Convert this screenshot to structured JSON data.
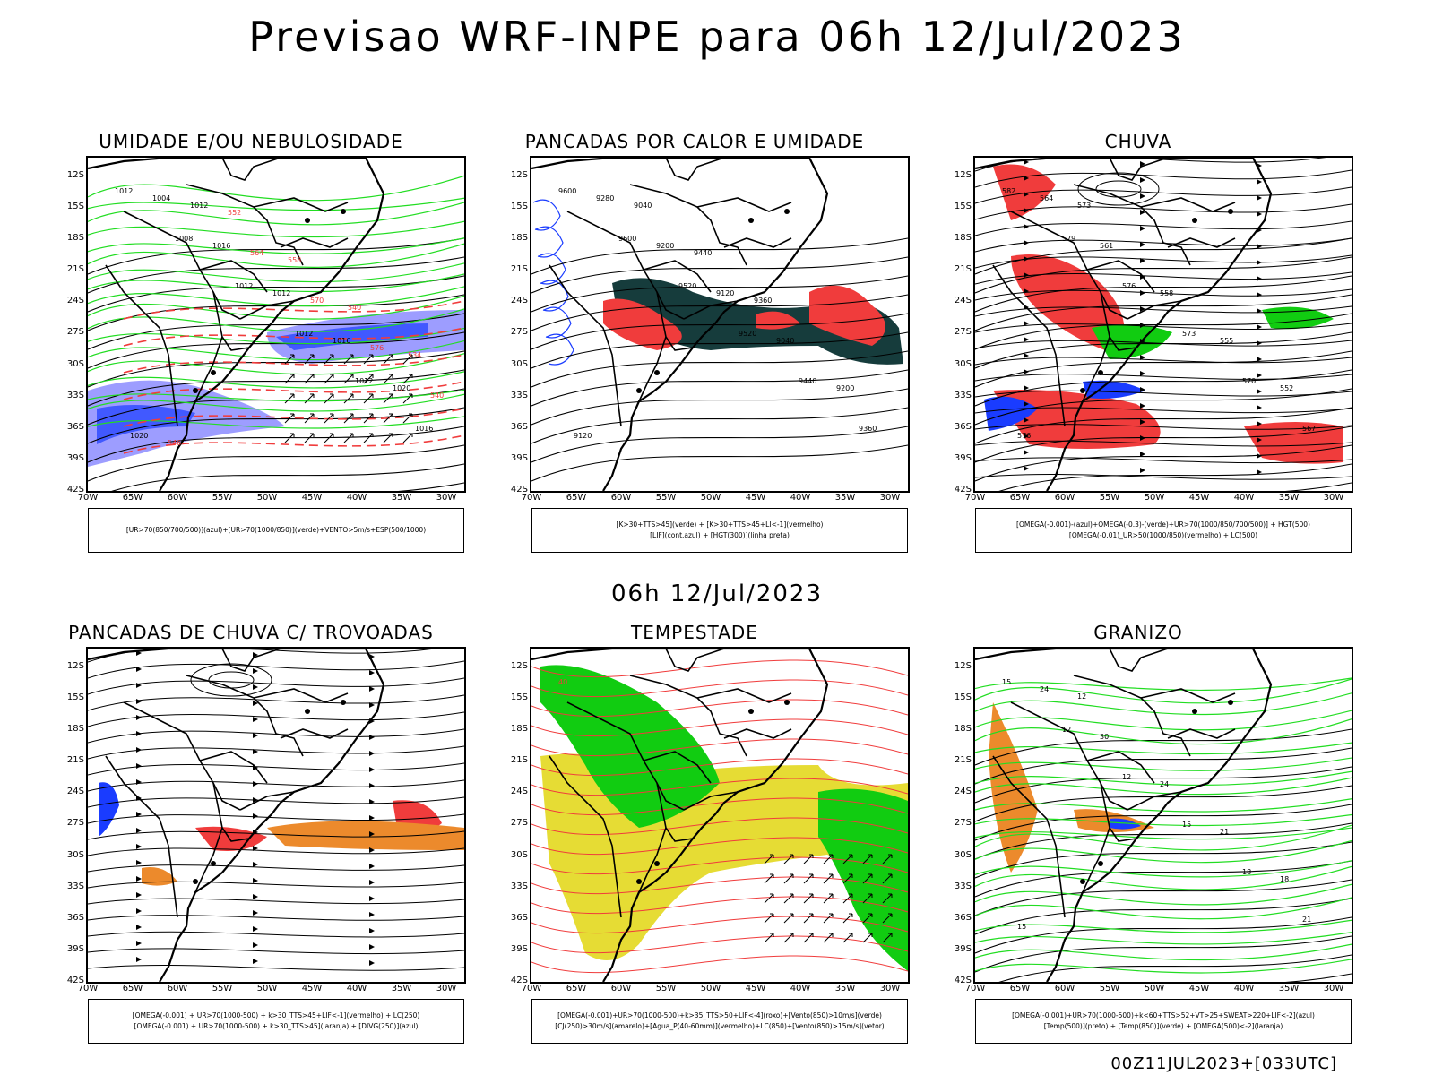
{
  "title": "Previsao WRF-INPE  para 06h 12/Jul/2023",
  "subtitle": "06h 12/Jul/2023",
  "footer": "00Z11JUL2023+[033UTC]",
  "axes": {
    "lat_ticks": [
      "12S",
      "15S",
      "18S",
      "21S",
      "24S",
      "27S",
      "30S",
      "33S",
      "36S",
      "39S",
      "42S"
    ],
    "lon_ticks": [
      "70W",
      "65W",
      "60W",
      "55W",
      "50W",
      "45W",
      "40W",
      "35W",
      "30W"
    ]
  },
  "colors": {
    "blue": "#1a3cff",
    "light_blue": "#8c8cff",
    "green": "#11cc11",
    "bright_green": "#22dd22",
    "red": "#f03c3c",
    "dark_teal": "#163c3c",
    "yellow": "#e6dc34",
    "orange": "#ec8a2c",
    "black": "#000000"
  },
  "panels": [
    {
      "id": "umidade",
      "title": "UMIDADE E/OU NEBULOSIDADE",
      "legend": [
        "[UR>70(850/700/500)](azul)+[UR>70(1000/850)](verde)+VENTO>5m/s+ESP(500/1000)"
      ],
      "contour_labels": [
        "1012",
        "1008",
        "1012",
        "1012",
        "1012",
        "1016",
        "1004",
        "1016",
        "1012",
        "1016",
        "1020",
        "1020",
        "1012",
        "564",
        "570",
        "576",
        "540",
        "546",
        "552",
        "558",
        "540",
        "534"
      ]
    },
    {
      "id": "pancadas_calor",
      "title": "PANCADAS POR CALOR E UMIDADE",
      "legend": [
        "[K>30+TTS>45](verde) + [K>30+TTS>45+LI<-1](vermelho)",
        "[LIF](cont.azul) + [HGT(300)](linha preta)"
      ],
      "contour_labels": [
        "9600",
        "9600",
        "9520",
        "9520",
        "9440",
        "9360",
        "9280",
        "9200",
        "9120",
        "9040",
        "9200",
        "9120",
        "9040",
        "9440",
        "9360"
      ]
    },
    {
      "id": "chuva",
      "title": "CHUVA",
      "legend": [
        "[OMEGA(-0.001)-(azul)+OMEGA(-0.3)-(verde)+UR>70(1000/850/700/500)] + HGT(500)",
        "[OMEGA(-0.01)_UR>50(1000/850)(vermelho) + LC(500)"
      ],
      "contour_labels": [
        "582",
        "579",
        "576",
        "573",
        "570",
        "567",
        "564",
        "561",
        "558",
        "555",
        "552",
        "576",
        "573"
      ]
    },
    {
      "id": "pancadas_trovoadas",
      "title": "PANCADAS DE CHUVA C/ TROVOADAS",
      "legend": [
        "[OMEGA(-0.001) + UR>70(1000-500) + k>30_TTS>45+LIF<-1](vermelho) + LC(250)",
        "[OMEGA(-0.001) + UR>70(1000-500) + k>30_TTS>45](laranja) + [DIVG(250)](azul)"
      ],
      "contour_labels": []
    },
    {
      "id": "tempestade",
      "title": "TEMPESTADE",
      "legend": [
        "[OMEGA(-0.001)+UR>70(1000-500)+k>35_TTS>50+LIF<-4](roxo)+[Vento(850)>10m/s](verde)",
        "[CJ(250)>30m/s](amarelo)+[Agua_P(40-60mm)](vermelho)+LC(850)+[Vento(850)>15m/s](vetor)"
      ],
      "contour_labels": [
        "40"
      ]
    },
    {
      "id": "granizo",
      "title": "GRANIZO",
      "legend": [
        "[OMEGA(-0.001)+UR>70(1000-500)+k<60+TTS>52+VT>25+SWEAT>220+LIF<-2](azul)",
        "[Temp(500)](preto) + [Temp(850)](verde) + [OMEGA(500)<-2](laranja)"
      ],
      "contour_labels": [
        "15",
        "12",
        "12",
        "15",
        "18",
        "21",
        "24",
        "30",
        "24",
        "21",
        "18",
        "15",
        "12"
      ]
    }
  ]
}
